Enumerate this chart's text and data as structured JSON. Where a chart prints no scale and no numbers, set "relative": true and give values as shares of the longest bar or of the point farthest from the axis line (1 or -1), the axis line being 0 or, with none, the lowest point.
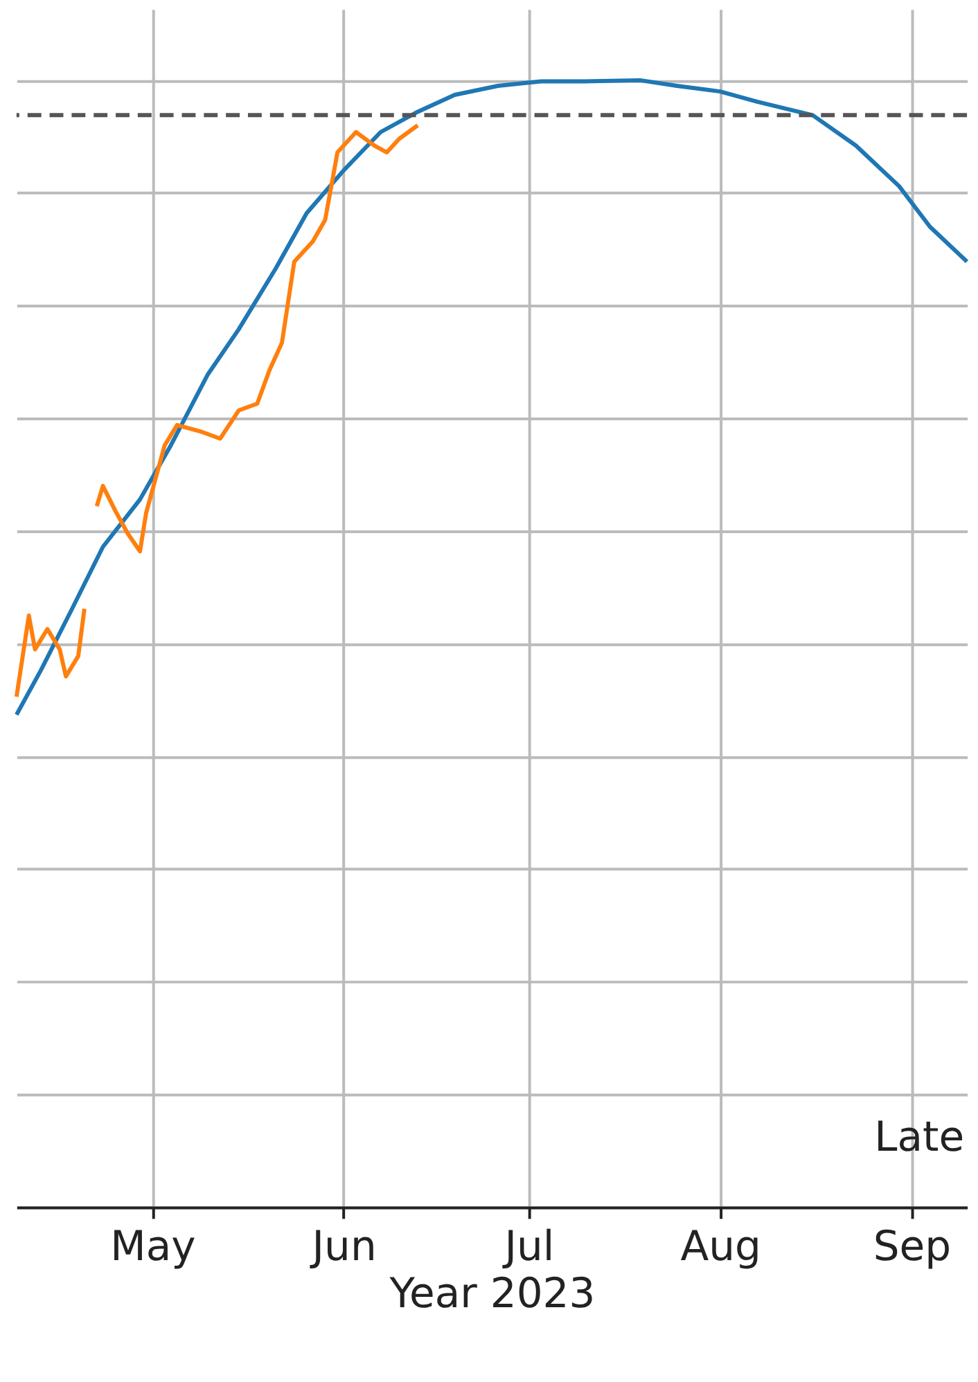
{
  "chart_data": {
    "type": "line",
    "relative": true,
    "xlabel": "Year 2023",
    "xlim": [
      "2023-04-09",
      "2023-09-10"
    ],
    "xticks": [
      {
        "value": "2023-05-01",
        "label": "May"
      },
      {
        "value": "2023-06-01",
        "label": "Jun"
      },
      {
        "value": "2023-07-01",
        "label": "Jul"
      },
      {
        "value": "2023-08-01",
        "label": "Aug"
      },
      {
        "value": "2023-09-01",
        "label": "Sep"
      }
    ],
    "grid": true,
    "line_style": "solid",
    "marker": "none",
    "annotations": [
      "Late"
    ],
    "ref_lines": [
      {
        "axis": "y",
        "value": 0.969,
        "color": "#555555",
        "line_style": "dashed"
      }
    ],
    "series": [
      {
        "color": "#1f77b4",
        "x": [
          "2023-04-09",
          "2023-04-13",
          "2023-04-18",
          "2023-04-23",
          "2023-04-29",
          "2023-05-04",
          "2023-05-10",
          "2023-05-15",
          "2023-05-21",
          "2023-05-26",
          "2023-06-01",
          "2023-06-07",
          "2023-06-13",
          "2023-06-19",
          "2023-06-26",
          "2023-07-03",
          "2023-07-10",
          "2023-07-19",
          "2023-07-25",
          "2023-08-01",
          "2023-08-07",
          "2023-08-16",
          "2023-08-23",
          "2023-08-30",
          "2023-09-04",
          "2023-09-10"
        ],
        "values": [
          0.437,
          0.477,
          0.531,
          0.586,
          0.628,
          0.676,
          0.739,
          0.779,
          0.833,
          0.882,
          0.92,
          0.954,
          0.972,
          0.987,
          0.995,
          0.999,
          0.999,
          1.0,
          0.995,
          0.99,
          0.981,
          0.969,
          0.942,
          0.906,
          0.87,
          0.839
        ]
      },
      {
        "color": "#ff7f0e",
        "x": [
          "2023-04-09",
          "2023-04-11",
          "2023-04-12",
          "2023-04-14",
          "2023-04-16",
          "2023-04-17",
          "2023-04-19",
          "2023-04-20",
          "2023-04-21",
          "2023-04-22",
          "2023-04-23",
          "2023-04-25",
          "2023-04-27",
          "2023-04-29",
          "2023-04-30",
          "2023-05-03",
          "2023-05-05",
          "2023-05-09",
          "2023-05-12",
          "2023-05-15",
          "2023-05-18",
          "2023-05-20",
          "2023-05-22",
          "2023-05-24",
          "2023-05-27",
          "2023-05-29",
          "2023-05-31",
          "2023-06-03",
          "2023-06-06",
          "2023-06-08",
          "2023-06-10",
          "2023-06-13"
        ],
        "values": [
          0.453,
          0.525,
          0.495,
          0.513,
          0.495,
          0.471,
          0.489,
          0.531,
          null,
          0.622,
          0.64,
          0.618,
          0.598,
          0.582,
          0.616,
          0.676,
          0.694,
          0.688,
          0.682,
          0.707,
          0.713,
          0.743,
          0.767,
          0.839,
          0.857,
          0.876,
          0.936,
          0.954,
          0.942,
          0.936,
          0.948,
          0.96
        ]
      }
    ]
  }
}
